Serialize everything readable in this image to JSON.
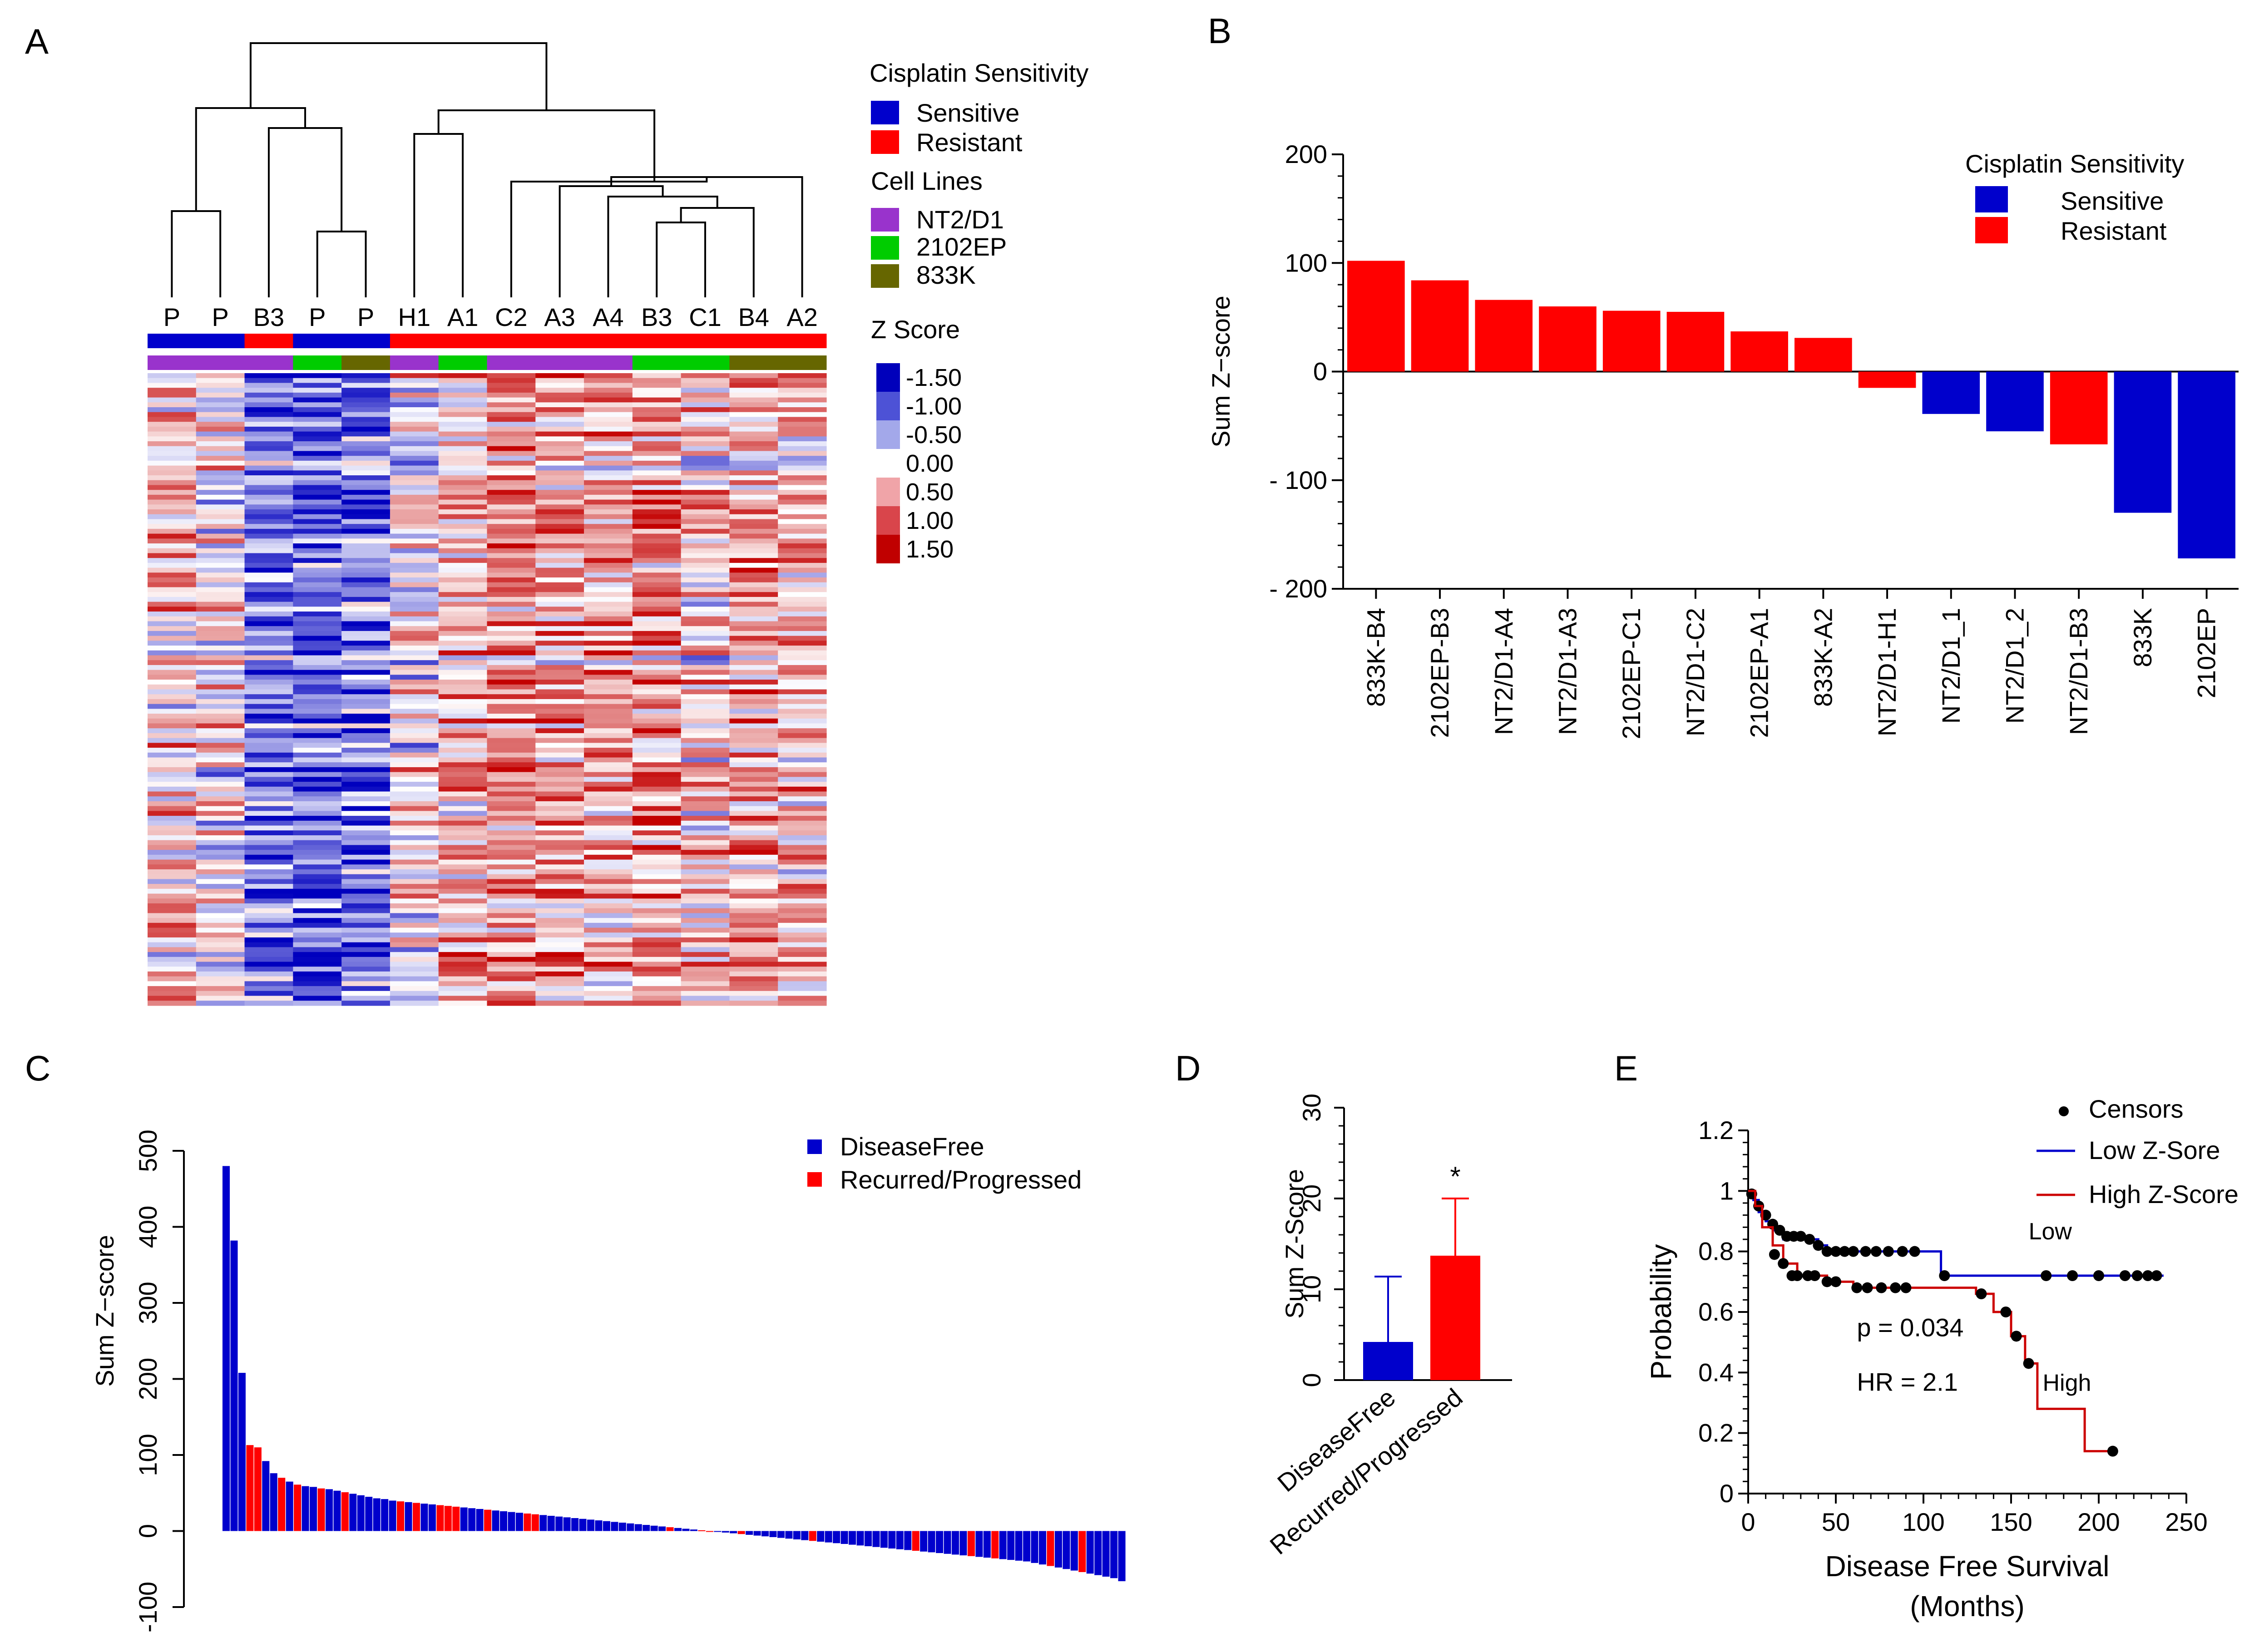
{
  "colors": {
    "sensitive": "#0000cc",
    "resistant": "#ff0000",
    "nt2d1": "#9933cc",
    "ep2102": "#00cc00",
    "k833": "#666600",
    "disease_free": "#0000cc",
    "recurred": "#ff0000",
    "low_line": "#0000cc",
    "high_line": "#cc0000",
    "censor": "#000000"
  },
  "panel_labels": {
    "a": "A",
    "b": "B",
    "c": "C",
    "d": "D",
    "e": "E"
  },
  "chart_data": [
    {
      "panel": "A",
      "type": "heatmap",
      "column_labels": [
        "P",
        "P",
        "B3",
        "P",
        "P",
        "H1",
        "A1",
        "C2",
        "A3",
        "A4",
        "B3",
        "C1",
        "B4",
        "A2"
      ],
      "sensitivity_bar": [
        "sensitive",
        "sensitive",
        "resistant",
        "sensitive",
        "sensitive",
        "resistant",
        "resistant",
        "resistant",
        "resistant",
        "resistant",
        "resistant",
        "resistant",
        "resistant",
        "resistant"
      ],
      "cell_line_bar": [
        "nt2d1",
        "nt2d1",
        "nt2d1",
        "ep2102",
        "k833",
        "nt2d1",
        "ep2102",
        "nt2d1",
        "nt2d1",
        "nt2d1",
        "ep2102",
        "ep2102",
        "k833",
        "k833"
      ],
      "legend": {
        "sensitivity_title": "Cisplatin Sensitivity",
        "sensitive": "Sensitive",
        "resistant": "Resistant",
        "cell_lines_title": "Cell Lines",
        "nt2d1": "NT2/D1",
        "ep2102": "2102EP",
        "k833": "833K",
        "zscore_title": "Z Score",
        "zscale_values": [
          "-1.50",
          "-1.00",
          "-0.50",
          "0.00",
          "0.50",
          "1.00",
          "1.50"
        ],
        "zscale_colors": [
          "#0000bb",
          "#4d52d6",
          "#a3a8ea",
          "#ffffff",
          "#f0a4a8",
          "#d9454b",
          "#c00000"
        ]
      },
      "column_means": [
        0.3,
        0.1,
        -0.7,
        -0.9,
        -0.8,
        0.05,
        0.35,
        0.6,
        0.5,
        0.4,
        0.55,
        0.2,
        0.5,
        0.3
      ]
    },
    {
      "panel": "B",
      "type": "bar",
      "ylabel": "Sum Z−score",
      "ylim": [
        -200,
        200
      ],
      "yticks": [
        200,
        100,
        0,
        -100,
        -200
      ],
      "ytick_labels": [
        "200",
        "100",
        "0",
        "- 100",
        "- 200"
      ],
      "categories": [
        "833K-B4",
        "2102EP-B3",
        "NT2/D1-A4",
        "NT2/D1-A3",
        "2102EP-C1",
        "NT2/D1-C2",
        "2102EP-A1",
        "833K-A2",
        "NT2/D1-H1",
        "NT2/D1_1",
        "NT2/D1_2",
        "NT2/D1-B3",
        "833K",
        "2102EP"
      ],
      "values": [
        102,
        84,
        66,
        60,
        56,
        55,
        37,
        31,
        -15,
        -39,
        -55,
        -67,
        -130,
        -172
      ],
      "groups": [
        "resistant",
        "resistant",
        "resistant",
        "resistant",
        "resistant",
        "resistant",
        "resistant",
        "resistant",
        "resistant",
        "sensitive",
        "sensitive",
        "resistant",
        "sensitive",
        "sensitive"
      ],
      "legend_title": "Cisplatin Sensitivity",
      "legend_labels": [
        "Sensitive",
        "Resistant"
      ]
    },
    {
      "panel": "C",
      "type": "bar",
      "ylabel": "Sum Z−score",
      "ylim": [
        -100,
        500
      ],
      "yticks": [
        500,
        400,
        300,
        200,
        100,
        0,
        -100
      ],
      "values": [
        480,
        382,
        208,
        113,
        110,
        92,
        76,
        70,
        65,
        61,
        59,
        58,
        56,
        55,
        53,
        51,
        49,
        47,
        45,
        43,
        42,
        40,
        39,
        38,
        37,
        36,
        35,
        34,
        33,
        32,
        31,
        30,
        29,
        28,
        27,
        26,
        25,
        24,
        23,
        22,
        21,
        20,
        19,
        18,
        17,
        16,
        15,
        14,
        13,
        12,
        11,
        10,
        9,
        8,
        7,
        6,
        5,
        4,
        3,
        2,
        1,
        0,
        -1,
        -2,
        -3,
        -4,
        -5,
        -6,
        -7,
        -8,
        -9,
        -10,
        -11,
        -12,
        -13,
        -14,
        -15,
        -16,
        -17,
        -18,
        -19,
        -20,
        -21,
        -22,
        -23,
        -24,
        -25,
        -26,
        -27,
        -28,
        -29,
        -30,
        -31,
        -32,
        -33,
        -34,
        -35,
        -36,
        -37,
        -38,
        -39,
        -40,
        -42,
        -44,
        -46,
        -48,
        -50,
        -52,
        -54,
        -56,
        -58,
        -60,
        -62,
        -66
      ],
      "groups": [
        "df",
        "df",
        "df",
        "rp",
        "rp",
        "df",
        "df",
        "rp",
        "df",
        "rp",
        "df",
        "df",
        "rp",
        "df",
        "df",
        "rp",
        "df",
        "df",
        "df",
        "df",
        "df",
        "df",
        "rp",
        "df",
        "rp",
        "df",
        "df",
        "rp",
        "rp",
        "rp",
        "df",
        "df",
        "df",
        "rp",
        "df",
        "df",
        "df",
        "df",
        "rp",
        "rp",
        "df",
        "df",
        "df",
        "df",
        "df",
        "df",
        "df",
        "df",
        "df",
        "df",
        "df",
        "df",
        "df",
        "df",
        "df",
        "df",
        "rp",
        "df",
        "df",
        "df",
        "rp",
        "rp",
        "df",
        "df",
        "df",
        "rp",
        "df",
        "df",
        "df",
        "df",
        "df",
        "df",
        "df",
        "df",
        "rp",
        "df",
        "df",
        "df",
        "df",
        "df",
        "df",
        "df",
        "df",
        "df",
        "df",
        "df",
        "df",
        "rp",
        "df",
        "df",
        "df",
        "df",
        "df",
        "df",
        "rp",
        "df",
        "df",
        "rp",
        "df",
        "df",
        "df",
        "df",
        "df",
        "df",
        "rp",
        "df",
        "df",
        "df",
        "rp",
        "df",
        "df",
        "df",
        "df",
        "df"
      ],
      "legend_labels": [
        "DiseaseFree",
        "Recurred/Progressed"
      ]
    },
    {
      "panel": "D",
      "type": "bar",
      "ylabel": "Sum Z-Score",
      "ylim": [
        0,
        30
      ],
      "yticks": [
        0,
        10,
        20,
        30
      ],
      "categories": [
        "DiseaseFree",
        "Recurred/Progressed"
      ],
      "values": [
        4.2,
        13.7
      ],
      "errors": [
        7.2,
        6.3
      ],
      "annotation": "*"
    },
    {
      "panel": "E",
      "type": "line",
      "xlabel": "Disease Free Survival",
      "xlabel_unit": "(Months)",
      "ylabel": "Probability",
      "xlim": [
        0,
        250
      ],
      "ylim": [
        0,
        1.2
      ],
      "xticks": [
        0,
        50,
        100,
        150,
        200,
        250
      ],
      "yticks": [
        0,
        0.2,
        0.4,
        0.6,
        0.8,
        1,
        1.2
      ],
      "series": [
        {
          "name": "Low Z-Sore",
          "key": "low",
          "steps": [
            [
              0,
              1.0
            ],
            [
              3,
              0.97
            ],
            [
              6,
              0.93
            ],
            [
              10,
              0.9
            ],
            [
              15,
              0.87
            ],
            [
              20,
              0.84
            ],
            [
              40,
              0.82
            ],
            [
              45,
              0.8
            ],
            [
              110,
              0.8
            ],
            [
              110,
              0.72
            ],
            [
              237,
              0.72
            ]
          ],
          "censors": [
            [
              2,
              0.99
            ],
            [
              6,
              0.95
            ],
            [
              10,
              0.92
            ],
            [
              14,
              0.89
            ],
            [
              18,
              0.87
            ],
            [
              22,
              0.85
            ],
            [
              26,
              0.85
            ],
            [
              30,
              0.85
            ],
            [
              35,
              0.84
            ],
            [
              40,
              0.82
            ],
            [
              45,
              0.8
            ],
            [
              50,
              0.8
            ],
            [
              55,
              0.8
            ],
            [
              60,
              0.8
            ],
            [
              67,
              0.8
            ],
            [
              73,
              0.8
            ],
            [
              80,
              0.8
            ],
            [
              88,
              0.8
            ],
            [
              95,
              0.8
            ],
            [
              112,
              0.72
            ],
            [
              170,
              0.72
            ],
            [
              185,
              0.72
            ],
            [
              200,
              0.72
            ],
            [
              215,
              0.72
            ],
            [
              222,
              0.72
            ],
            [
              228,
              0.72
            ],
            [
              233,
              0.72
            ]
          ]
        },
        {
          "name": "High Z-Score",
          "key": "high",
          "steps": [
            [
              0,
              1.0
            ],
            [
              4,
              0.95
            ],
            [
              8,
              0.88
            ],
            [
              14,
              0.82
            ],
            [
              20,
              0.76
            ],
            [
              28,
              0.72
            ],
            [
              45,
              0.7
            ],
            [
              60,
              0.68
            ],
            [
              130,
              0.66
            ],
            [
              140,
              0.6
            ],
            [
              150,
              0.52
            ],
            [
              158,
              0.43
            ],
            [
              165,
              0.43
            ],
            [
              165,
              0.28
            ],
            [
              192,
              0.28
            ],
            [
              192,
              0.14
            ],
            [
              208,
              0.14
            ]
          ],
          "censors": [
            [
              15,
              0.79
            ],
            [
              20,
              0.76
            ],
            [
              25,
              0.72
            ],
            [
              28,
              0.72
            ],
            [
              34,
              0.72
            ],
            [
              38,
              0.72
            ],
            [
              45,
              0.7
            ],
            [
              50,
              0.7
            ],
            [
              62,
              0.68
            ],
            [
              68,
              0.68
            ],
            [
              76,
              0.68
            ],
            [
              84,
              0.68
            ],
            [
              90,
              0.68
            ],
            [
              133,
              0.66
            ],
            [
              147,
              0.6
            ],
            [
              153,
              0.52
            ],
            [
              160,
              0.43
            ],
            [
              208,
              0.14
            ]
          ]
        }
      ],
      "legend_labels": {
        "censors": "Censors",
        "low": "Low Z-Sore",
        "high": "High Z-Score"
      },
      "annotations": {
        "low": "Low",
        "high": "High",
        "p": "p = 0.034",
        "hr": "HR = 2.1"
      }
    }
  ]
}
